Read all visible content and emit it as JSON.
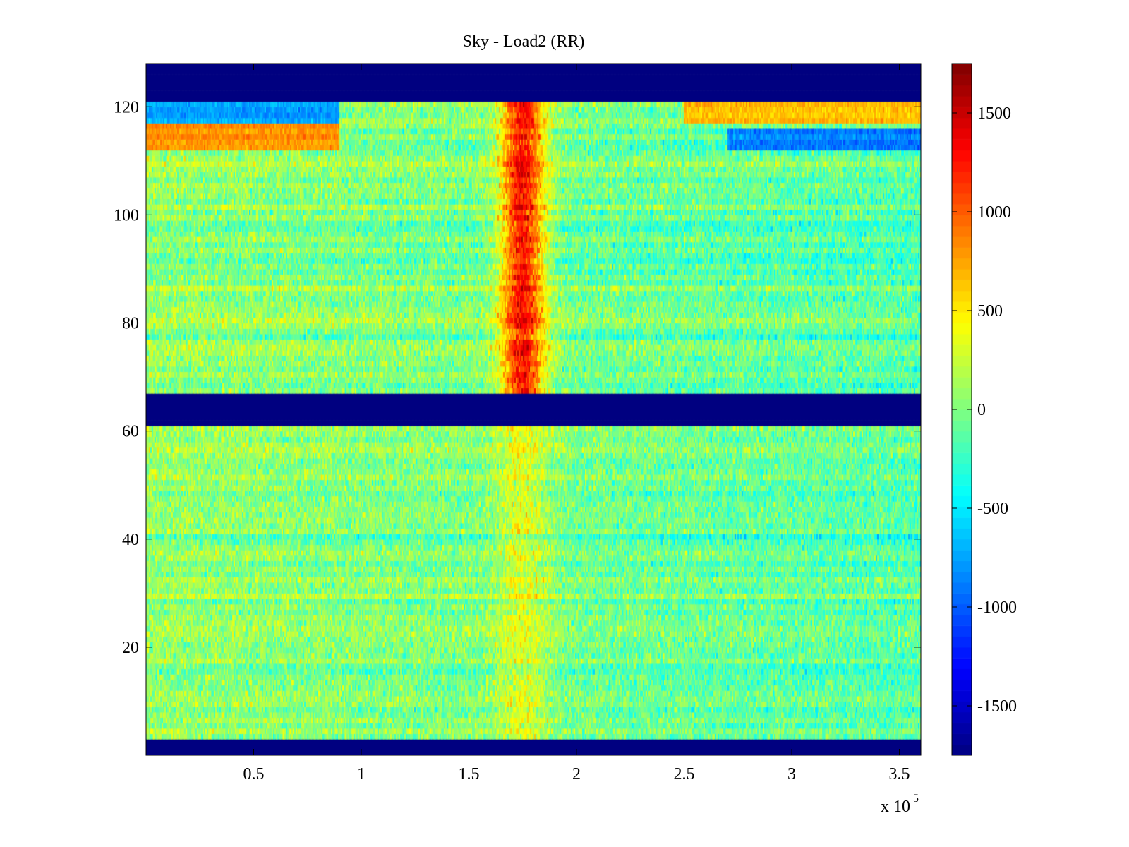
{
  "chart_data": {
    "type": "heatmap",
    "title": "Sky - Load2 (RR)",
    "xlabel": "",
    "ylabel": "",
    "x_multiplier_label": "x 10",
    "x_multiplier_exponent": "5",
    "xlim": [
      0,
      360000
    ],
    "ylim": [
      0,
      128
    ],
    "xticks": [
      50000,
      100000,
      150000,
      200000,
      250000,
      300000,
      350000
    ],
    "xtick_labels": [
      "0.5",
      "1",
      "1.5",
      "2",
      "2.5",
      "3",
      "3.5"
    ],
    "yticks": [
      20,
      40,
      60,
      80,
      100,
      120
    ],
    "ytick_labels": [
      "20",
      "40",
      "60",
      "80",
      "100",
      "120"
    ],
    "colormap": "jet",
    "clim": [
      -1750,
      1750
    ],
    "colorbar_ticks": [
      -1500,
      -1000,
      -500,
      0,
      500,
      1000,
      1500
    ],
    "colorbar_tick_labels": [
      "-1500",
      "-1000",
      "-500",
      "0",
      "500",
      "1000",
      "1500"
    ],
    "masked_bands": [
      {
        "y_from": 0,
        "y_to": 3,
        "value": -1750
      },
      {
        "y_from": 61,
        "y_to": 67,
        "value": -1750
      },
      {
        "y_from": 121,
        "y_to": 128,
        "value": -1750
      }
    ],
    "features": [
      {
        "kind": "vertical_stripe",
        "x_center": 175000,
        "x_width": 12000,
        "y_from": 67,
        "y_to": 121,
        "value": 1300
      },
      {
        "kind": "vertical_stripe",
        "x_center": 175000,
        "x_width": 15000,
        "y_from": 3,
        "y_to": 61,
        "value": 350
      },
      {
        "kind": "horizontal_band",
        "y_from": 117,
        "y_to": 121,
        "x_from": 0,
        "x_to": 90000,
        "value": -800
      },
      {
        "kind": "horizontal_band",
        "y_from": 117,
        "y_to": 121,
        "x_from": 250000,
        "x_to": 360000,
        "value": 700
      },
      {
        "kind": "horizontal_band",
        "y_from": 112,
        "y_to": 117,
        "x_from": 0,
        "x_to": 90000,
        "value": 800
      },
      {
        "kind": "horizontal_band",
        "y_from": 112,
        "y_to": 116,
        "x_from": 270000,
        "x_to": 360000,
        "value": -800
      }
    ]
  }
}
